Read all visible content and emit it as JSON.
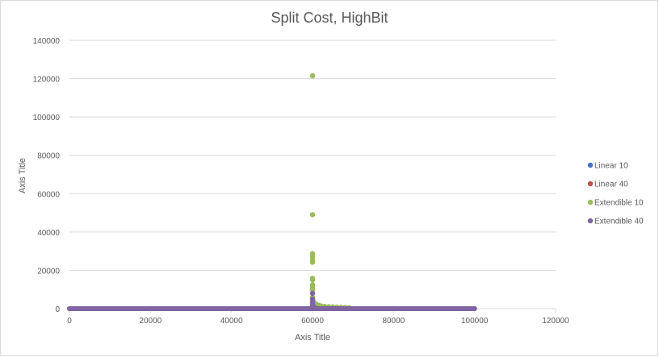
{
  "chart_data": {
    "type": "scatter",
    "title": "Split Cost, HighBit",
    "xlabel": "Axis Title",
    "ylabel": "Axis Title",
    "xlim": [
      0,
      120000
    ],
    "ylim": [
      0,
      140000
    ],
    "x_ticks": [
      "0",
      "20000",
      "40000",
      "60000",
      "80000",
      "100000",
      "120000"
    ],
    "y_ticks": [
      "0",
      "20000",
      "40000",
      "60000",
      "80000",
      "100000",
      "120000",
      "140000"
    ],
    "grid": true,
    "legend_position": "right",
    "series": [
      {
        "name": "Linear 10",
        "color": "#4472c4",
        "line": {
          "x_start": 0,
          "x_end": 100000,
          "y": 0
        },
        "points": []
      },
      {
        "name": "Linear 40",
        "color": "#c0504d",
        "line": {
          "x_start": 0,
          "x_end": 100000,
          "y": 0
        },
        "points": []
      },
      {
        "name": "Extendible 10",
        "color": "#9bbb59",
        "line": {
          "x_start": 0,
          "x_end": 100000,
          "y": 0
        },
        "points": [
          {
            "x": 60000,
            "y": 121500
          },
          {
            "x": 60000,
            "y": 49000
          },
          {
            "x": 60000,
            "y": 28700
          },
          {
            "x": 60000,
            "y": 27000
          },
          {
            "x": 60000,
            "y": 25300
          },
          {
            "x": 60000,
            "y": 24200
          },
          {
            "x": 60000,
            "y": 15800
          },
          {
            "x": 60000,
            "y": 15000
          },
          {
            "x": 60000,
            "y": 12500
          },
          {
            "x": 60000,
            "y": 11800
          },
          {
            "x": 60000,
            "y": 10800
          },
          {
            "x": 60000,
            "y": 9800
          },
          {
            "x": 60000,
            "y": 8000
          },
          {
            "x": 60000,
            "y": 6000
          },
          {
            "x": 60100,
            "y": 4500
          },
          {
            "x": 60300,
            "y": 3500
          },
          {
            "x": 60600,
            "y": 2700
          },
          {
            "x": 61000,
            "y": 2200
          },
          {
            "x": 61500,
            "y": 1800
          },
          {
            "x": 62000,
            "y": 1500
          },
          {
            "x": 63000,
            "y": 1200
          },
          {
            "x": 64000,
            "y": 1000
          },
          {
            "x": 65000,
            "y": 900
          },
          {
            "x": 66000,
            "y": 800
          },
          {
            "x": 67000,
            "y": 700
          },
          {
            "x": 68000,
            "y": 600
          },
          {
            "x": 69000,
            "y": 500
          }
        ]
      },
      {
        "name": "Extendible 40",
        "color": "#8064a2",
        "line": {
          "x_start": 0,
          "x_end": 100000,
          "y": 0
        },
        "points": [
          {
            "x": 60000,
            "y": 8000
          },
          {
            "x": 60000,
            "y": 5000
          },
          {
            "x": 60000,
            "y": 3500
          },
          {
            "x": 60000,
            "y": 2500
          },
          {
            "x": 60000,
            "y": 1500
          },
          {
            "x": 60200,
            "y": 1000
          },
          {
            "x": 60500,
            "y": 700
          }
        ]
      }
    ]
  }
}
